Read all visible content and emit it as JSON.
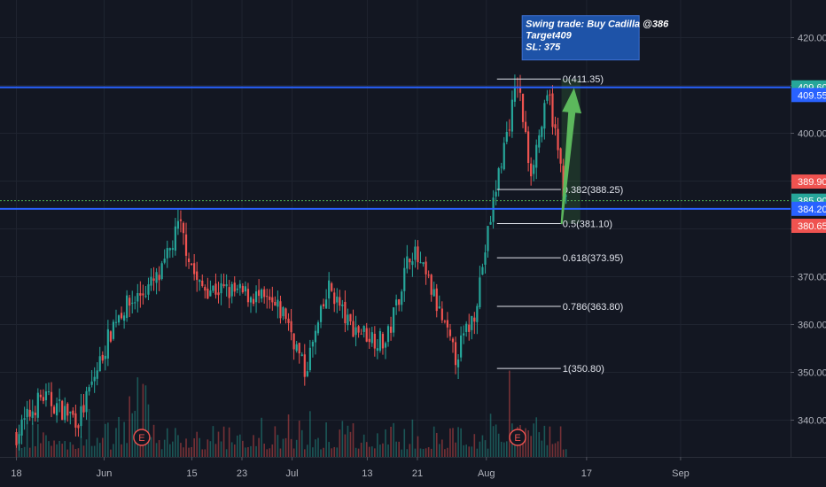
{
  "chart_data": {
    "type": "candlestick",
    "ylim": [
      333,
      428
    ],
    "grid": true,
    "y_ticks": [
      340,
      350,
      360,
      370,
      380,
      390,
      400,
      410,
      420
    ],
    "y_tick_labels": [
      "340.00",
      "350.00",
      "360.00",
      "370.00",
      "380.00",
      "390.00",
      "400.00",
      "410.00",
      "420.00"
    ],
    "x_ticks": [
      {
        "date": "2020-05-18",
        "label": "18"
      },
      {
        "date": "2020-06-01",
        "label": "Jun"
      },
      {
        "date": "2020-06-15",
        "label": "15"
      },
      {
        "date": "2020-06-23",
        "label": "23"
      },
      {
        "date": "2020-07-01",
        "label": "Jul"
      },
      {
        "date": "2020-07-13",
        "label": "13"
      },
      {
        "date": "2020-07-21",
        "label": "21"
      },
      {
        "date": "2020-08-01",
        "label": "Aug"
      },
      {
        "date": "2020-08-17",
        "label": "17"
      },
      {
        "date": "2020-09-01",
        "label": "Sep"
      }
    ],
    "date_range": [
      "2020-05-18",
      "2020-09-07"
    ],
    "approx_closes": [
      {
        "date": "2020-05-18",
        "close": 337
      },
      {
        "date": "2020-05-22",
        "close": 345
      },
      {
        "date": "2020-05-28",
        "close": 340
      },
      {
        "date": "2020-06-03",
        "close": 362
      },
      {
        "date": "2020-06-10",
        "close": 370
      },
      {
        "date": "2020-06-13",
        "close": 381
      },
      {
        "date": "2020-06-16",
        "close": 368
      },
      {
        "date": "2020-06-25",
        "close": 366
      },
      {
        "date": "2020-06-30",
        "close": 362
      },
      {
        "date": "2020-07-03",
        "close": 350
      },
      {
        "date": "2020-07-07",
        "close": 368
      },
      {
        "date": "2020-07-10",
        "close": 360
      },
      {
        "date": "2020-07-16",
        "close": 356
      },
      {
        "date": "2020-07-20",
        "close": 376
      },
      {
        "date": "2020-07-23",
        "close": 368
      },
      {
        "date": "2020-07-27",
        "close": 353
      },
      {
        "date": "2020-07-30",
        "close": 362
      },
      {
        "date": "2020-08-03",
        "close": 392
      },
      {
        "date": "2020-08-06",
        "close": 411
      },
      {
        "date": "2020-08-08",
        "close": 392
      },
      {
        "date": "2020-08-11",
        "close": 408
      },
      {
        "date": "2020-08-14",
        "close": 383
      }
    ],
    "price_lines": [
      {
        "label": "409.60",
        "value": 409.6,
        "color": "#2962ff",
        "tag_color": "#26a69a"
      },
      {
        "label": "384.20",
        "value": 384.2,
        "color": "#2962ff",
        "tag_color": "#2962ff"
      }
    ],
    "dotted_line": {
      "value": 385.9,
      "color": "#4caf50"
    },
    "price_tags": [
      {
        "label": "409.60",
        "value": 409.6,
        "color": "#26a69a"
      },
      {
        "label": "409.55",
        "value": 408.0,
        "color": "#2962ff"
      },
      {
        "label": "389.90",
        "value": 389.9,
        "color": "#ef5350"
      },
      {
        "label": "385.90",
        "value": 385.9,
        "color": "#26a69a"
      },
      {
        "label": "384.20",
        "value": 384.2,
        "color": "#2962ff"
      },
      {
        "label": "380.65",
        "value": 380.65,
        "color": "#ef5350"
      }
    ],
    "fib_levels": [
      {
        "label": "0(411.35)",
        "value": 411.35
      },
      {
        "label": "0.382(388.25)",
        "value": 388.25
      },
      {
        "label": "0.5(381.10)",
        "value": 381.1
      },
      {
        "label": "0.618(373.95)",
        "value": 373.95
      },
      {
        "label": "0.786(363.80)",
        "value": 363.8
      },
      {
        "label": "1(350.80)",
        "value": 350.8
      }
    ],
    "fib_range": {
      "start_date": "2020-08-01",
      "end_date": "2020-08-16"
    },
    "annotation": {
      "lines": [
        "Swing trade: Buy Cadilla @386",
        "Target409",
        "SL: 375"
      ],
      "date": "2020-08-07",
      "value": 422,
      "bg": "#1e53a8"
    },
    "arrow": {
      "from_date": "2020-08-13",
      "from_value": 381,
      "to_date": "2020-08-15",
      "to_value": 409.5,
      "color": "#5cb85c"
    },
    "earnings_markers": [
      {
        "date": "2020-06-07",
        "label": "E"
      },
      {
        "date": "2020-08-06",
        "label": "E"
      }
    ],
    "colors": {
      "up": "#26a69a",
      "down": "#ef5350",
      "bg": "#131722",
      "grid": "#1f2430",
      "text": "#b2b5be"
    }
  }
}
